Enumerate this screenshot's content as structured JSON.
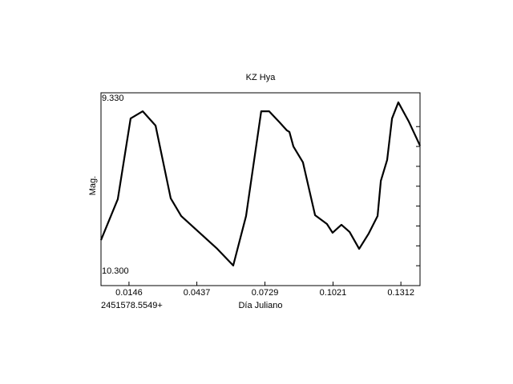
{
  "chart_data": {
    "type": "line",
    "title": "KZ Hya",
    "y_label": "Mag.",
    "x_label": "Día Juliano",
    "x_offset_label": "2451578.5549+",
    "x": [
      0.0026,
      0.0098,
      0.0153,
      0.0205,
      0.026,
      0.0325,
      0.037,
      0.0445,
      0.0521,
      0.0593,
      0.0648,
      0.0713,
      0.0747,
      0.0792,
      0.0823,
      0.0834,
      0.0851,
      0.0892,
      0.0944,
      0.0995,
      0.1019,
      0.1057,
      0.1092,
      0.1133,
      0.1174,
      0.1212,
      0.1226,
      0.1253,
      0.1274,
      0.1301,
      0.1346,
      0.1394
    ],
    "series": [
      {
        "name": "KZ Hya",
        "color": "#000000",
        "values": [
          10.071,
          9.865,
          9.459,
          9.423,
          9.495,
          9.861,
          9.95,
          10.03,
          10.111,
          10.199,
          9.95,
          9.423,
          9.423,
          9.479,
          9.519,
          9.527,
          9.6,
          9.68,
          9.946,
          9.99,
          10.034,
          9.994,
          10.03,
          10.115,
          10.038,
          9.95,
          9.773,
          9.668,
          9.459,
          9.378,
          9.475,
          9.596
        ]
      }
    ],
    "xlim": [
      0.0026,
      0.1394
    ],
    "xticks": [
      0.0146,
      0.0437,
      0.0729,
      0.1021,
      0.1312
    ],
    "ylim": [
      9.33,
      10.3
    ],
    "y_inverted": true,
    "yticks": [
      {
        "value": 9.33,
        "label": "9.330"
      },
      {
        "value": 10.3,
        "label": "10.300"
      }
    ],
    "yminorticks": [
      9.5,
      9.6,
      9.7,
      9.8,
      9.9,
      10.0,
      10.1,
      10.2
    ]
  }
}
